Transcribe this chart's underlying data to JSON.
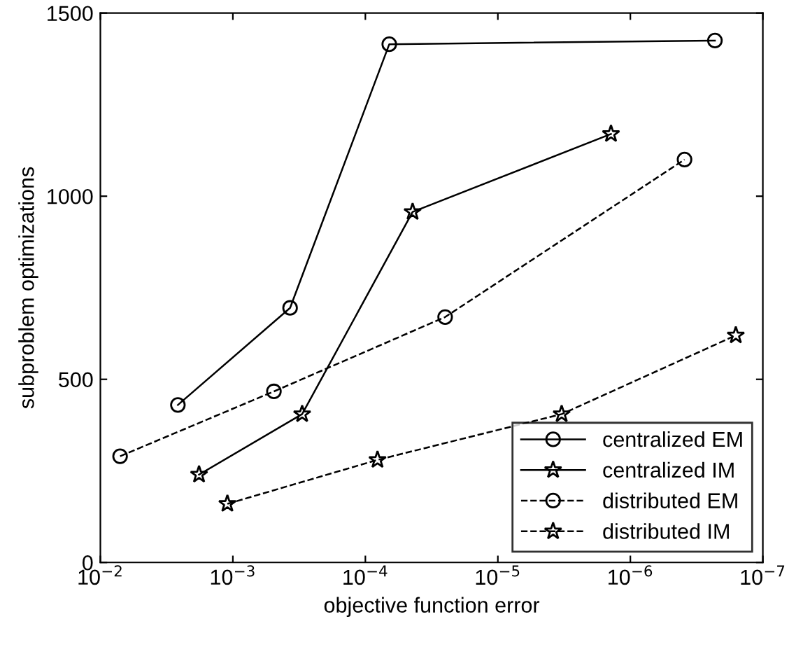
{
  "chart_data": {
    "type": "line",
    "xlabel": "objective function error",
    "ylabel": "subproblem optimizations",
    "log": "x",
    "xlim": [
      0.01,
      1e-07
    ],
    "xticks": [
      {
        "value": 0.01,
        "label": "10$^{−2}$"
      },
      {
        "value": 0.001,
        "label": "10$^{−3}$"
      },
      {
        "value": 0.0001,
        "label": "10$^{−4}$"
      },
      {
        "value": 1e-05,
        "label": "10$^{−5}$"
      },
      {
        "value": 1e-06,
        "label": "10$^{−6}$"
      },
      {
        "value": 1e-07,
        "label": "10$^{−7}$"
      }
    ],
    "ylim": [
      0,
      1500
    ],
    "yticks": [
      0,
      500,
      1000,
      1500
    ],
    "grid": false,
    "legend": "bottom right",
    "series": [
      {
        "name": "centralized EM",
        "color": "#000000",
        "marker": "circle",
        "line_style": "solid",
        "x": [
          0.0026,
          0.00037,
          6.6e-05,
          2.3e-07
        ],
        "values": [
          430,
          695,
          1415,
          1425
        ]
      },
      {
        "name": "centralized IM",
        "color": "#000000",
        "marker": "star",
        "line_style": "solid",
        "x": [
          0.0018,
          0.0003,
          4.4e-05,
          1.4e-06
        ],
        "values": [
          240,
          405,
          957,
          1170
        ]
      },
      {
        "name": "distributed EM",
        "color": "#000000",
        "marker": "circle",
        "line_style": "dashed",
        "x": [
          0.0071,
          0.00049,
          2.5e-05,
          3.9e-07
        ],
        "values": [
          290,
          467,
          670,
          1100
        ]
      },
      {
        "name": "distributed IM",
        "color": "#000000",
        "marker": "star",
        "line_style": "dashed",
        "x": [
          0.0011,
          8.1e-05,
          3.3e-06,
          1.6e-07
        ],
        "values": [
          160,
          280,
          405,
          620
        ]
      }
    ]
  }
}
